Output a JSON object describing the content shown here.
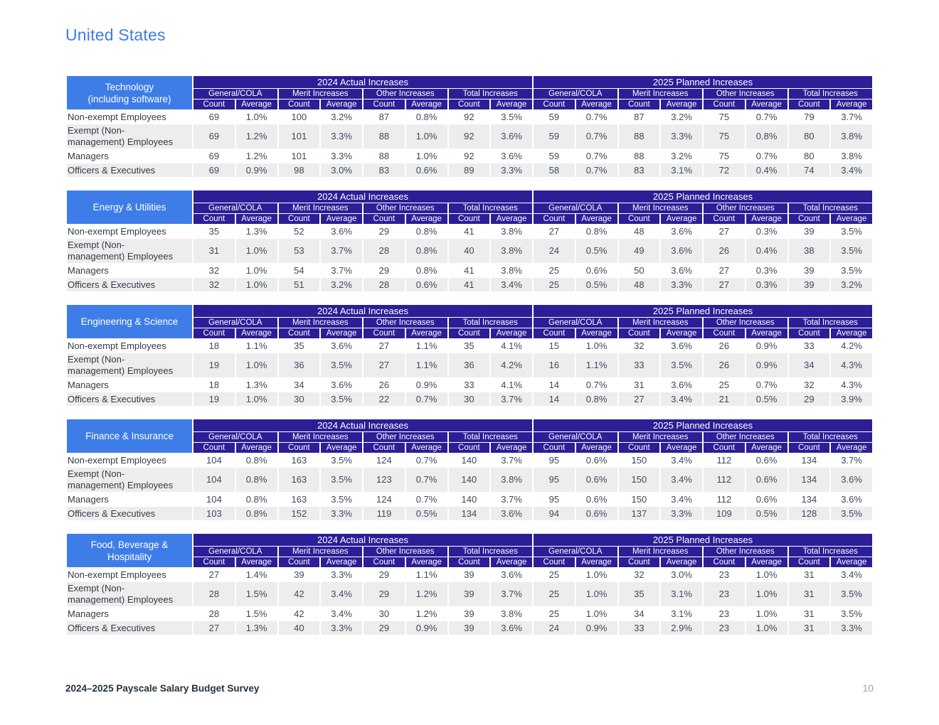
{
  "page": {
    "title": "United States",
    "footer_left": "2024–2025 Payscale Salary Budget Survey",
    "footer_page_number": "10"
  },
  "colors": {
    "accent_blue": "#3E7DE8",
    "header_indigo": "#2C1E96",
    "stripe_gray": "#EDEDEE"
  },
  "table_headers": {
    "group_2024": "2024 Actual Increases",
    "group_2025": "2025 Planned Increases",
    "subgroups": [
      "General/COLA",
      "Merit Increases",
      "Other Increases",
      "Total Increases"
    ],
    "count_label": "Count",
    "average_label": "Average"
  },
  "row_labels": [
    "Non-exempt Employees",
    "Exempt (Non-\nmanagement) Employees",
    "Managers",
    "Officers & Executives"
  ],
  "tables": [
    {
      "industry": "Technology\n(including software)",
      "rows": [
        [
          "69",
          "1.0%",
          "100",
          "3.2%",
          "87",
          "0.8%",
          "92",
          "3.5%",
          "59",
          "0.7%",
          "87",
          "3.2%",
          "75",
          "0.7%",
          "79",
          "3.7%"
        ],
        [
          "69",
          "1.2%",
          "101",
          "3.3%",
          "88",
          "1.0%",
          "92",
          "3.6%",
          "59",
          "0.7%",
          "88",
          "3.3%",
          "75",
          "0.8%",
          "80",
          "3.8%"
        ],
        [
          "69",
          "1.2%",
          "101",
          "3.3%",
          "88",
          "1.0%",
          "92",
          "3.6%",
          "59",
          "0.7%",
          "88",
          "3.2%",
          "75",
          "0.7%",
          "80",
          "3.8%"
        ],
        [
          "69",
          "0.9%",
          "98",
          "3.0%",
          "83",
          "0.6%",
          "89",
          "3.3%",
          "58",
          "0.7%",
          "83",
          "3.1%",
          "72",
          "0.4%",
          "74",
          "3.4%"
        ]
      ]
    },
    {
      "industry": "Energy & Utilities",
      "rows": [
        [
          "35",
          "1.3%",
          "52",
          "3.6%",
          "29",
          "0.8%",
          "41",
          "3.8%",
          "27",
          "0.8%",
          "48",
          "3.6%",
          "27",
          "0.3%",
          "39",
          "3.5%"
        ],
        [
          "31",
          "1.0%",
          "53",
          "3.7%",
          "28",
          "0.8%",
          "40",
          "3.8%",
          "24",
          "0.5%",
          "49",
          "3.6%",
          "26",
          "0.4%",
          "38",
          "3.5%"
        ],
        [
          "32",
          "1.0%",
          "54",
          "3.7%",
          "29",
          "0.8%",
          "41",
          "3.8%",
          "25",
          "0.6%",
          "50",
          "3.6%",
          "27",
          "0.3%",
          "39",
          "3.5%"
        ],
        [
          "32",
          "1.0%",
          "51",
          "3.2%",
          "28",
          "0.6%",
          "41",
          "3.4%",
          "25",
          "0.5%",
          "48",
          "3.3%",
          "27",
          "0.3%",
          "39",
          "3.2%"
        ]
      ]
    },
    {
      "industry": "Engineering & Science",
      "rows": [
        [
          "18",
          "1.1%",
          "35",
          "3.6%",
          "27",
          "1.1%",
          "35",
          "4.1%",
          "15",
          "1.0%",
          "32",
          "3.6%",
          "26",
          "0.9%",
          "33",
          "4.2%"
        ],
        [
          "19",
          "1.0%",
          "36",
          "3.5%",
          "27",
          "1.1%",
          "36",
          "4.2%",
          "16",
          "1.1%",
          "33",
          "3.5%",
          "26",
          "0.9%",
          "34",
          "4.3%"
        ],
        [
          "18",
          "1.3%",
          "34",
          "3.6%",
          "26",
          "0.9%",
          "33",
          "4.1%",
          "14",
          "0.7%",
          "31",
          "3.6%",
          "25",
          "0.7%",
          "32",
          "4.3%"
        ],
        [
          "19",
          "1.0%",
          "30",
          "3.5%",
          "22",
          "0.7%",
          "30",
          "3.7%",
          "14",
          "0.8%",
          "27",
          "3.4%",
          "21",
          "0.5%",
          "29",
          "3.9%"
        ]
      ]
    },
    {
      "industry": "Finance & Insurance",
      "rows": [
        [
          "104",
          "0.8%",
          "163",
          "3.5%",
          "124",
          "0.7%",
          "140",
          "3.7%",
          "95",
          "0.6%",
          "150",
          "3.4%",
          "112",
          "0.6%",
          "134",
          "3.7%"
        ],
        [
          "104",
          "0.8%",
          "163",
          "3.5%",
          "123",
          "0.7%",
          "140",
          "3.8%",
          "95",
          "0.6%",
          "150",
          "3.4%",
          "112",
          "0.6%",
          "134",
          "3.6%"
        ],
        [
          "104",
          "0.8%",
          "163",
          "3.5%",
          "124",
          "0.7%",
          "140",
          "3.7%",
          "95",
          "0.6%",
          "150",
          "3.4%",
          "112",
          "0.6%",
          "134",
          "3.6%"
        ],
        [
          "103",
          "0.8%",
          "152",
          "3.3%",
          "119",
          "0.5%",
          "134",
          "3.6%",
          "94",
          "0.6%",
          "137",
          "3.3%",
          "109",
          "0.5%",
          "128",
          "3.5%"
        ]
      ]
    },
    {
      "industry": "Food, Beverage &\nHospitality",
      "rows": [
        [
          "27",
          "1.4%",
          "39",
          "3.3%",
          "29",
          "1.1%",
          "39",
          "3.6%",
          "25",
          "1.0%",
          "32",
          "3.0%",
          "23",
          "1.0%",
          "31",
          "3.4%"
        ],
        [
          "28",
          "1.5%",
          "42",
          "3.4%",
          "29",
          "1.2%",
          "39",
          "3.7%",
          "25",
          "1.0%",
          "35",
          "3.1%",
          "23",
          "1.0%",
          "31",
          "3.5%"
        ],
        [
          "28",
          "1.5%",
          "42",
          "3.4%",
          "30",
          "1.2%",
          "39",
          "3.8%",
          "25",
          "1.0%",
          "34",
          "3.1%",
          "23",
          "1.0%",
          "31",
          "3.5%"
        ],
        [
          "27",
          "1.3%",
          "40",
          "3.3%",
          "29",
          "0.9%",
          "39",
          "3.6%",
          "24",
          "0.9%",
          "33",
          "2.9%",
          "23",
          "1.0%",
          "31",
          "3.3%"
        ]
      ]
    }
  ]
}
